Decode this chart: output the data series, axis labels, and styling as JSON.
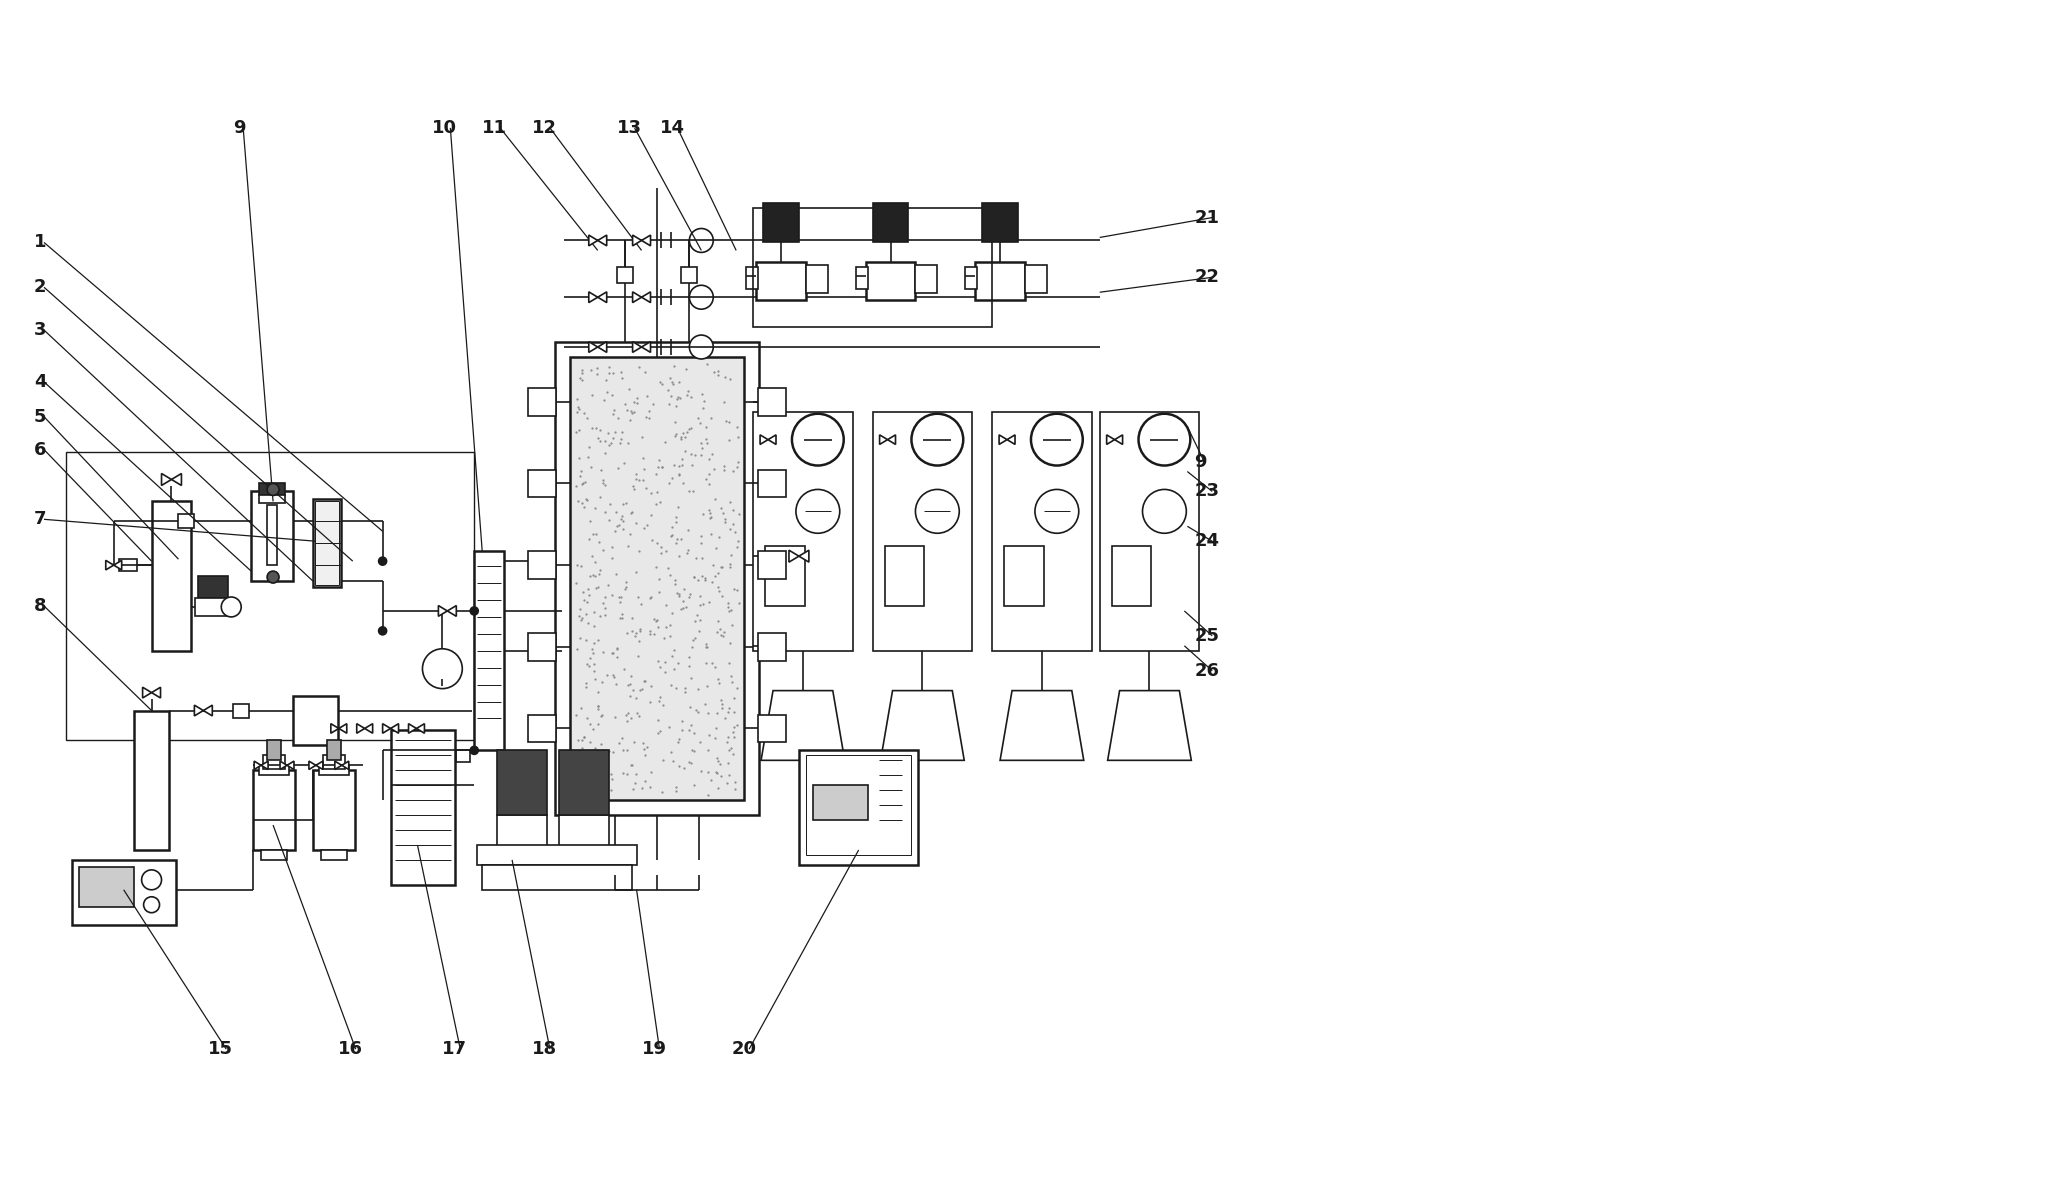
{
  "background_color": "#ffffff",
  "line_color": "#1a1a1a",
  "figsize": [
    20.45,
    11.92
  ],
  "dpi": 100,
  "label_font": 13,
  "label_color": "#1a1a1a"
}
